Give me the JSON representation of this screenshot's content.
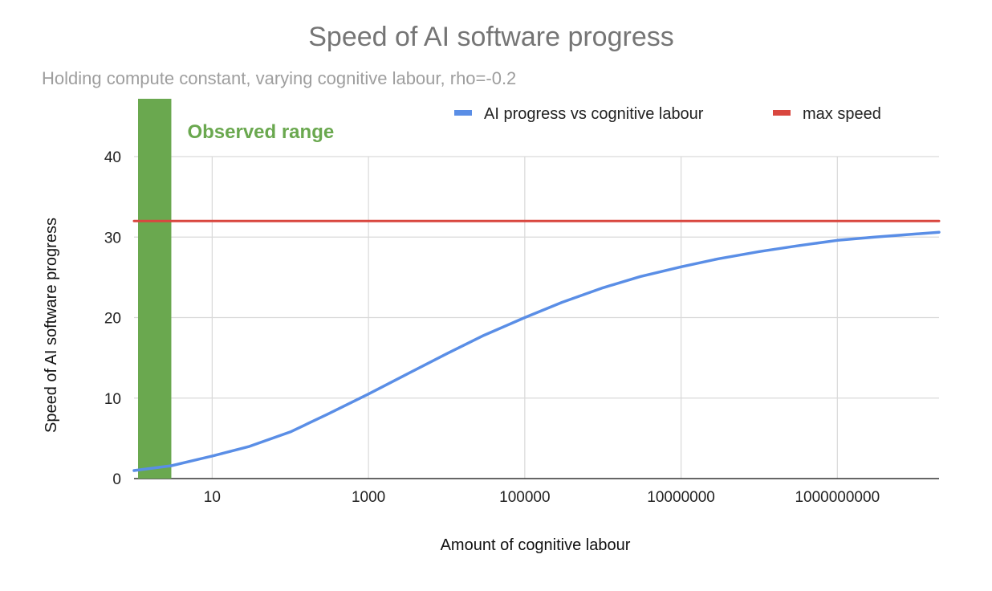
{
  "chart_data": {
    "type": "line",
    "title": "Speed of AI software progress",
    "subtitle": "Holding compute constant, varying cognitive labour, rho=-0.2",
    "xlabel": "Amount of cognitive labour",
    "ylabel": "Speed of AI software progress",
    "x_scale": "log",
    "xlim": [
      1,
      20000000000
    ],
    "ylim": [
      0,
      40
    ],
    "x_ticks": [
      {
        "value": 10,
        "label": "10"
      },
      {
        "value": 1000,
        "label": "1000"
      },
      {
        "value": 100000,
        "label": "100000"
      },
      {
        "value": 10000000,
        "label": "10000000"
      },
      {
        "value": 1000000000,
        "label": "1000000000"
      }
    ],
    "y_ticks": [
      {
        "value": 0,
        "label": "0"
      },
      {
        "value": 10,
        "label": "10"
      },
      {
        "value": 20,
        "label": "20"
      },
      {
        "value": 30,
        "label": "30"
      },
      {
        "value": 40,
        "label": "40"
      }
    ],
    "grid": true,
    "legend_position": "top-right",
    "series": [
      {
        "name": "AI progress vs cognitive labour",
        "color": "#5a8ee6",
        "x": [
          1,
          3,
          10,
          30,
          100,
          300,
          1000,
          3000,
          10000,
          30000,
          100000,
          300000,
          1000000,
          3000000,
          10000000,
          30000000,
          100000000,
          300000000,
          1000000000,
          3000000000,
          20000000000
        ],
        "y": [
          1.0,
          1.6,
          2.8,
          4.0,
          5.8,
          8.0,
          10.5,
          12.9,
          15.5,
          17.8,
          20.0,
          21.9,
          23.7,
          25.1,
          26.3,
          27.3,
          28.2,
          28.9,
          29.6,
          30.0,
          30.6
        ]
      },
      {
        "name": "max speed",
        "color": "#d9473f",
        "x": [
          1,
          20000000000
        ],
        "y": [
          32,
          32
        ]
      }
    ],
    "annotations": [
      {
        "text": "Observed range",
        "color": "#6aa84f",
        "x_from": 1,
        "x_to": 3
      }
    ]
  }
}
